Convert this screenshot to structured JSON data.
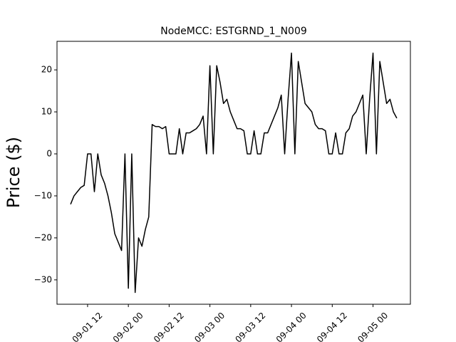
{
  "chart_data": {
    "type": "line",
    "title": "NodeMCC: ESTGRND_1_N009",
    "y_label": "Price ($)",
    "color": "#000000",
    "x": [
      "09-01 07",
      "09-01 08",
      "09-01 09",
      "09-01 10",
      "09-01 11",
      "09-01 12",
      "09-01 13",
      "09-01 14",
      "09-01 15",
      "09-01 16",
      "09-01 17",
      "09-01 18",
      "09-01 19",
      "09-01 20",
      "09-01 21",
      "09-01 22",
      "09-01 23",
      "09-02 00",
      "09-02 01",
      "09-02 02",
      "09-02 03",
      "09-02 04",
      "09-02 05",
      "09-02 06",
      "09-02 07",
      "09-02 08",
      "09-02 09",
      "09-02 10",
      "09-02 11",
      "09-02 12",
      "09-02 13",
      "09-02 14",
      "09-02 15",
      "09-02 16",
      "09-02 17",
      "09-02 18",
      "09-02 19",
      "09-02 20",
      "09-02 21",
      "09-02 22",
      "09-02 23",
      "09-03 00",
      "09-03 01",
      "09-03 02",
      "09-03 03",
      "09-03 04",
      "09-03 05",
      "09-03 06",
      "09-03 07",
      "09-03 08",
      "09-03 09",
      "09-03 10",
      "09-03 11",
      "09-03 12",
      "09-03 13",
      "09-03 14",
      "09-03 15",
      "09-03 16",
      "09-03 17",
      "09-03 18",
      "09-03 19",
      "09-03 20",
      "09-03 21",
      "09-03 22",
      "09-03 23",
      "09-04 00",
      "09-04 01",
      "09-04 02",
      "09-04 03",
      "09-04 04",
      "09-04 05",
      "09-04 06",
      "09-04 07",
      "09-04 08",
      "09-04 09",
      "09-04 10",
      "09-04 11",
      "09-04 12",
      "09-04 13",
      "09-04 14",
      "09-04 15",
      "09-04 16",
      "09-04 17",
      "09-04 18",
      "09-04 19",
      "09-04 20",
      "09-04 21",
      "09-04 22",
      "09-04 23",
      "09-05 00",
      "09-05 01",
      "09-05 02",
      "09-05 03",
      "09-05 04",
      "09-05 05",
      "09-05 06",
      "09-05 07"
    ],
    "values": [
      -12,
      -10,
      -9,
      -8,
      -7.5,
      0,
      0,
      -9,
      0,
      -5,
      -7,
      -10,
      -14,
      -19,
      -21,
      -23,
      0,
      -32,
      0,
      -33,
      -20,
      -22,
      -18,
      -15,
      7,
      6.5,
      6.5,
      6,
      6.5,
      0,
      0,
      0,
      6,
      0,
      5,
      5,
      5.5,
      6,
      7,
      9,
      0,
      21,
      0,
      21,
      17,
      12,
      13,
      10,
      8,
      6,
      6,
      5.5,
      0,
      0,
      5.5,
      0,
      0,
      5,
      5,
      7,
      9,
      11,
      14,
      0,
      13,
      24,
      0,
      22,
      17,
      12,
      11,
      10,
      7,
      6,
      6,
      5.5,
      0,
      0,
      5,
      0,
      0,
      5,
      6,
      9,
      10,
      12,
      14,
      0,
      13,
      24,
      0,
      22,
      17,
      12,
      13,
      10,
      8.5
    ],
    "xlim": [
      "09-01 03",
      "09-05 11"
    ],
    "xticks": [
      "09-01 12",
      "09-02 00",
      "09-02 12",
      "09-03 00",
      "09-03 12",
      "09-04 00",
      "09-04 12",
      "09-05 00"
    ],
    "ylim": [
      -35.8,
      26.8
    ],
    "yticks": [
      {
        "value": -30,
        "label": "−30"
      },
      {
        "value": -20,
        "label": "−20"
      },
      {
        "value": -10,
        "label": "−10"
      },
      0,
      10,
      20
    ]
  }
}
